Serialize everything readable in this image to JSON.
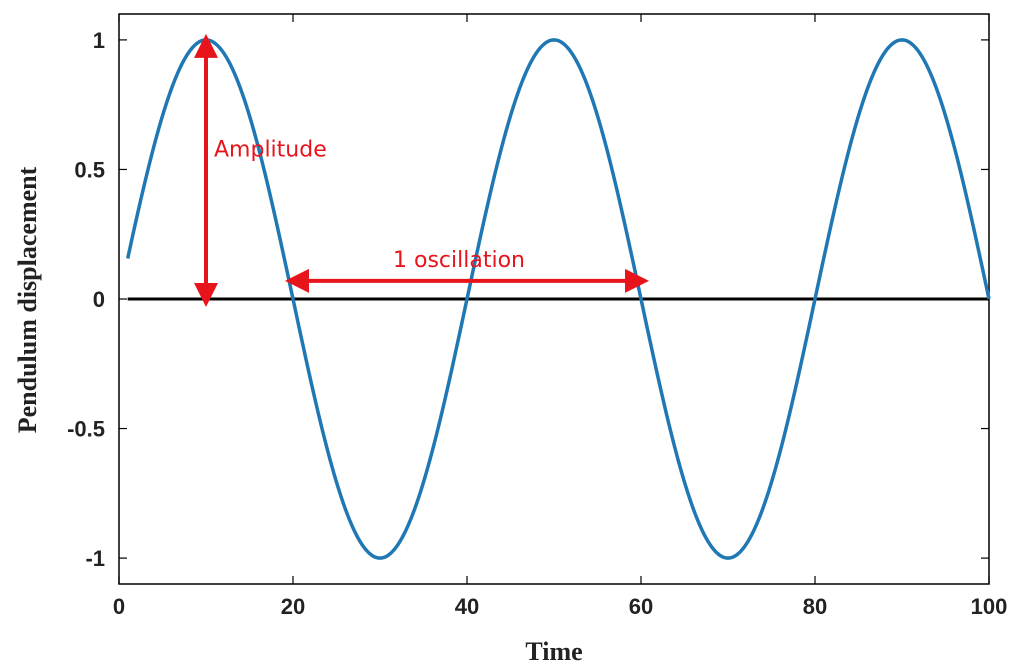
{
  "chart_data": {
    "type": "line",
    "title": "",
    "xlabel": "Time",
    "ylabel": "Pendulum displacement",
    "xlim": [
      0,
      100
    ],
    "ylim": [
      -1.1,
      1.1
    ],
    "xticks": [
      0,
      20,
      40,
      60,
      80,
      100
    ],
    "xtick_labels": [
      "0",
      "20",
      "40",
      "60",
      "80",
      "100"
    ],
    "yticks": [
      1,
      0.5,
      0,
      -0.5,
      -1
    ],
    "ytick_labels": [
      "1",
      "0.5",
      "0",
      "-0.5",
      "-1"
    ],
    "grid": false,
    "legend": "none",
    "series": [
      {
        "color": "#1f77b4",
        "function": "sin(2*pi*(t-0)/40)",
        "x_range": [
          1,
          100
        ],
        "period": 40,
        "amplitude": 1
      }
    ],
    "reference_line": {
      "y": 0,
      "color": "#000000"
    },
    "annotations": [
      {
        "text": "Amplitude",
        "type": "vertical-double-arrow",
        "x": 10,
        "y_from": 0,
        "y_to": 1,
        "color": "#e8141c"
      },
      {
        "text": "1 oscillation",
        "type": "horizontal-double-arrow",
        "y": 0.07,
        "x_from": 20,
        "x_to": 60,
        "color": "#e8141c"
      }
    ]
  }
}
